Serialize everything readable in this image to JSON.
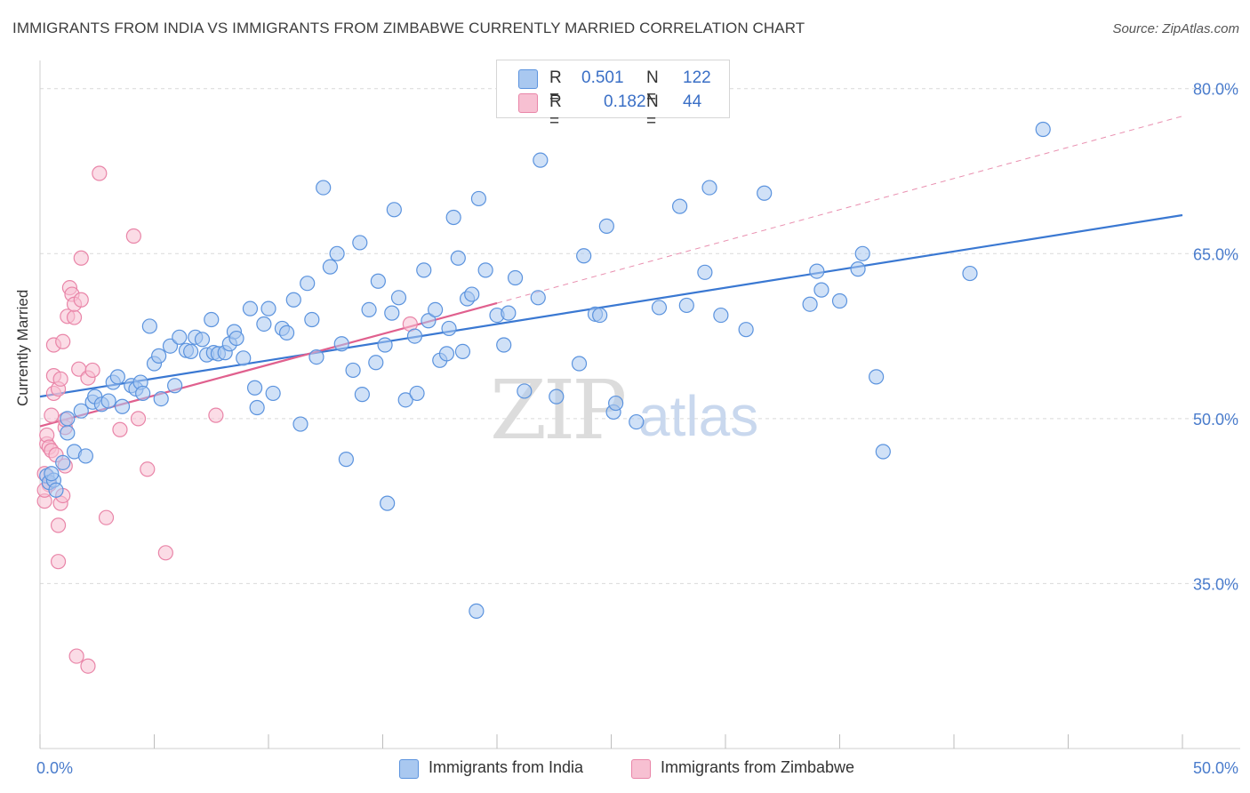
{
  "title": "IMMIGRANTS FROM INDIA VS IMMIGRANTS FROM ZIMBABWE CURRENTLY MARRIED CORRELATION CHART",
  "source": "Source: ZipAtlas.com",
  "watermark": {
    "zip": "ZIP",
    "atlas": "atlas"
  },
  "legend_top": {
    "r_label": "R =",
    "n_label": "N =",
    "india": {
      "r": "0.501",
      "n": "122"
    },
    "zimbabwe": {
      "r": "0.182",
      "n": "44"
    }
  },
  "colors": {
    "india_fill": "#a9c8f0",
    "india_stroke": "#5b93de",
    "india_line": "#3a78d2",
    "zim_fill": "#f7c0d2",
    "zim_stroke": "#e985a8",
    "zim_line": "#e0608e",
    "axis_tick_text": "#4a7ccc",
    "grid": "#d9d9d9"
  },
  "chart_data": {
    "type": "scatter",
    "title": "IMMIGRANTS FROM INDIA VS IMMIGRANTS FROM ZIMBABWE CURRENTLY MARRIED CORRELATION CHART",
    "xlabel": "",
    "ylabel": "Currently Married",
    "xlim": [
      0,
      50
    ],
    "ylim": [
      20,
      82
    ],
    "x_tick_labels": [
      "0.0%",
      "50.0%"
    ],
    "y_ticks": [
      35,
      50,
      65,
      80
    ],
    "y_tick_labels": [
      "35.0%",
      "50.0%",
      "65.0%",
      "80.0%"
    ],
    "grid": true,
    "legend_position": "bottom",
    "series": [
      {
        "name": "Immigrants from India",
        "color": "#a9c8f0",
        "trend": {
          "x": [
            0,
            50
          ],
          "y": [
            52.0,
            68.5
          ]
        },
        "points": [
          [
            0.3,
            44.8
          ],
          [
            0.4,
            44.2
          ],
          [
            0.6,
            44.4
          ],
          [
            0.7,
            43.5
          ],
          [
            0.5,
            45.0
          ],
          [
            1.0,
            46.0
          ],
          [
            1.5,
            47.0
          ],
          [
            2.0,
            46.6
          ],
          [
            1.2,
            48.7
          ],
          [
            1.8,
            50.7
          ],
          [
            1.2,
            50.0
          ],
          [
            2.3,
            51.5
          ],
          [
            2.4,
            52.0
          ],
          [
            2.7,
            51.3
          ],
          [
            3.0,
            51.6
          ],
          [
            3.2,
            53.3
          ],
          [
            3.4,
            53.8
          ],
          [
            3.6,
            51.1
          ],
          [
            4.0,
            53.0
          ],
          [
            4.2,
            52.7
          ],
          [
            4.4,
            53.3
          ],
          [
            4.5,
            52.3
          ],
          [
            4.8,
            58.4
          ],
          [
            5.0,
            55.0
          ],
          [
            5.2,
            55.7
          ],
          [
            5.3,
            51.8
          ],
          [
            5.7,
            56.6
          ],
          [
            5.9,
            53.0
          ],
          [
            6.1,
            57.4
          ],
          [
            6.4,
            56.2
          ],
          [
            6.6,
            56.1
          ],
          [
            6.8,
            57.4
          ],
          [
            7.1,
            57.2
          ],
          [
            7.3,
            55.8
          ],
          [
            7.5,
            59.0
          ],
          [
            7.6,
            56.0
          ],
          [
            7.8,
            55.9
          ],
          [
            8.1,
            56.0
          ],
          [
            8.3,
            56.8
          ],
          [
            8.5,
            57.9
          ],
          [
            8.6,
            57.3
          ],
          [
            8.9,
            55.5
          ],
          [
            9.2,
            60.0
          ],
          [
            9.4,
            52.8
          ],
          [
            9.5,
            51.0
          ],
          [
            9.8,
            58.6
          ],
          [
            10.0,
            60.0
          ],
          [
            10.2,
            52.3
          ],
          [
            10.6,
            58.2
          ],
          [
            10.8,
            57.8
          ],
          [
            11.1,
            60.8
          ],
          [
            11.4,
            49.5
          ],
          [
            11.7,
            62.3
          ],
          [
            11.9,
            59.0
          ],
          [
            12.1,
            55.6
          ],
          [
            12.4,
            71.0
          ],
          [
            12.7,
            63.8
          ],
          [
            13.0,
            65.0
          ],
          [
            13.2,
            56.8
          ],
          [
            13.4,
            46.3
          ],
          [
            13.7,
            54.4
          ],
          [
            14.0,
            66.0
          ],
          [
            14.1,
            52.2
          ],
          [
            14.4,
            59.9
          ],
          [
            14.7,
            55.1
          ],
          [
            14.8,
            62.5
          ],
          [
            15.1,
            56.7
          ],
          [
            15.2,
            42.3
          ],
          [
            15.4,
            59.6
          ],
          [
            15.7,
            61.0
          ],
          [
            15.5,
            69.0
          ],
          [
            16.0,
            51.7
          ],
          [
            16.4,
            57.5
          ],
          [
            16.5,
            52.3
          ],
          [
            16.8,
            63.5
          ],
          [
            17.0,
            58.9
          ],
          [
            17.3,
            59.9
          ],
          [
            17.5,
            55.3
          ],
          [
            17.8,
            55.9
          ],
          [
            17.9,
            58.2
          ],
          [
            18.1,
            68.3
          ],
          [
            18.3,
            64.6
          ],
          [
            18.5,
            56.1
          ],
          [
            18.7,
            60.9
          ],
          [
            18.9,
            61.3
          ],
          [
            19.1,
            32.5
          ],
          [
            19.5,
            63.5
          ],
          [
            19.2,
            70.0
          ],
          [
            20.0,
            59.4
          ],
          [
            20.3,
            56.7
          ],
          [
            20.5,
            59.6
          ],
          [
            20.8,
            62.8
          ],
          [
            21.2,
            52.5
          ],
          [
            21.8,
            61.0
          ],
          [
            21.9,
            73.5
          ],
          [
            22.6,
            52.0
          ],
          [
            23.6,
            55.0
          ],
          [
            23.8,
            64.8
          ],
          [
            24.3,
            59.5
          ],
          [
            24.5,
            59.4
          ],
          [
            24.8,
            67.5
          ],
          [
            25.1,
            50.6
          ],
          [
            25.2,
            51.4
          ],
          [
            26.1,
            49.7
          ],
          [
            27.1,
            60.1
          ],
          [
            28.0,
            69.3
          ],
          [
            28.3,
            60.3
          ],
          [
            29.1,
            63.3
          ],
          [
            29.3,
            71.0
          ],
          [
            29.8,
            59.4
          ],
          [
            30.9,
            58.1
          ],
          [
            31.7,
            70.5
          ],
          [
            33.7,
            60.4
          ],
          [
            34.0,
            63.4
          ],
          [
            34.2,
            61.7
          ],
          [
            35.0,
            60.7
          ],
          [
            35.8,
            63.6
          ],
          [
            36.0,
            65.0
          ],
          [
            36.6,
            53.8
          ],
          [
            36.9,
            47.0
          ],
          [
            40.7,
            63.2
          ],
          [
            43.9,
            76.3
          ]
        ]
      },
      {
        "name": "Immigrants from Zimbabwe",
        "color": "#f7c0d2",
        "trend": {
          "x": [
            0,
            20
          ],
          "y": [
            49.3,
            60.5
          ]
        },
        "trend_extension": {
          "x": [
            20,
            50
          ],
          "y": [
            60.5,
            77.5
          ]
        },
        "points": [
          [
            0.2,
            42.5
          ],
          [
            0.2,
            45.0
          ],
          [
            0.3,
            47.7
          ],
          [
            0.3,
            48.5
          ],
          [
            0.4,
            47.4
          ],
          [
            0.4,
            44.0
          ],
          [
            0.5,
            50.3
          ],
          [
            0.5,
            47.1
          ],
          [
            0.6,
            52.3
          ],
          [
            0.6,
            53.9
          ],
          [
            0.6,
            56.7
          ],
          [
            0.7,
            46.7
          ],
          [
            0.8,
            52.7
          ],
          [
            0.8,
            37.0
          ],
          [
            0.8,
            40.3
          ],
          [
            0.9,
            42.3
          ],
          [
            0.9,
            53.6
          ],
          [
            1.0,
            57.0
          ],
          [
            1.0,
            43.0
          ],
          [
            1.1,
            49.2
          ],
          [
            1.1,
            49.9
          ],
          [
            1.1,
            45.7
          ],
          [
            1.2,
            59.3
          ],
          [
            1.3,
            61.9
          ],
          [
            1.4,
            61.3
          ],
          [
            1.5,
            59.2
          ],
          [
            1.5,
            60.4
          ],
          [
            1.6,
            28.4
          ],
          [
            1.7,
            54.5
          ],
          [
            1.8,
            64.6
          ],
          [
            1.8,
            60.8
          ],
          [
            2.1,
            27.5
          ],
          [
            2.1,
            53.7
          ],
          [
            2.3,
            54.4
          ],
          [
            2.6,
            72.3
          ],
          [
            2.9,
            41.0
          ],
          [
            3.5,
            49.0
          ],
          [
            4.1,
            66.6
          ],
          [
            4.3,
            50.0
          ],
          [
            4.7,
            45.4
          ],
          [
            5.5,
            37.8
          ],
          [
            7.7,
            50.3
          ],
          [
            16.2,
            58.6
          ],
          [
            0.2,
            43.5
          ]
        ]
      }
    ]
  },
  "legend_bottom": [
    "Immigrants from India",
    "Immigrants from Zimbabwe"
  ]
}
